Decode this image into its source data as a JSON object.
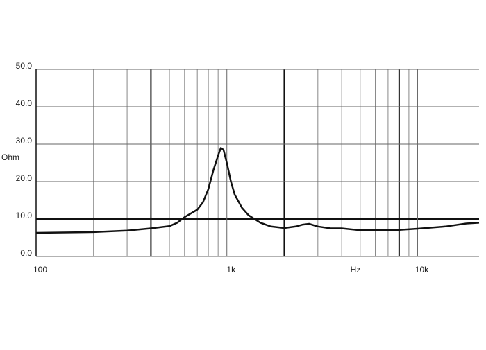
{
  "chart_data": {
    "type": "line",
    "y_label": "Ohm",
    "x_label": "Hz",
    "log_x": true,
    "xlim": [
      100,
      21000
    ],
    "xticks": [
      {
        "value": 100,
        "label": "100"
      },
      {
        "value": 1000,
        "label": "1k"
      },
      {
        "value": 10000,
        "label": "10k"
      }
    ],
    "x_minor_grid": [
      200,
      300,
      500,
      600,
      700,
      800,
      900,
      3000,
      4000,
      5000,
      6000,
      7000,
      9000
    ],
    "x_major_grid": [
      400,
      2000,
      8000
    ],
    "ylim": [
      0,
      50
    ],
    "yticks": [
      {
        "value": 0,
        "label": "0.0"
      },
      {
        "value": 10,
        "label": "10.0"
      },
      {
        "value": 20,
        "label": "20.0"
      },
      {
        "value": 30,
        "label": "30.0"
      },
      {
        "value": 40,
        "label": "40.0"
      },
      {
        "value": 50,
        "label": "50.0"
      }
    ],
    "grid": true,
    "x": [
      100,
      200,
      300,
      400,
      500,
      550,
      600,
      700,
      750,
      800,
      850,
      900,
      930,
      960,
      1000,
      1050,
      1100,
      1200,
      1300,
      1500,
      1700,
      2000,
      2300,
      2500,
      2700,
      3000,
      3500,
      4000,
      5000,
      6000,
      8000,
      10000,
      14000,
      18000,
      21000
    ],
    "series": [
      {
        "color": "#111111",
        "values": [
          6.3,
          6.5,
          6.9,
          7.5,
          8.1,
          9,
          10.5,
          12.5,
          14.5,
          18,
          23,
          27,
          29,
          28.5,
          25,
          20,
          16.5,
          13,
          11,
          9,
          8,
          7.6,
          8,
          8.5,
          8.7,
          8,
          7.5,
          7.5,
          7,
          7,
          7.1,
          7.4,
          8,
          8.8,
          9
        ]
      }
    ]
  }
}
